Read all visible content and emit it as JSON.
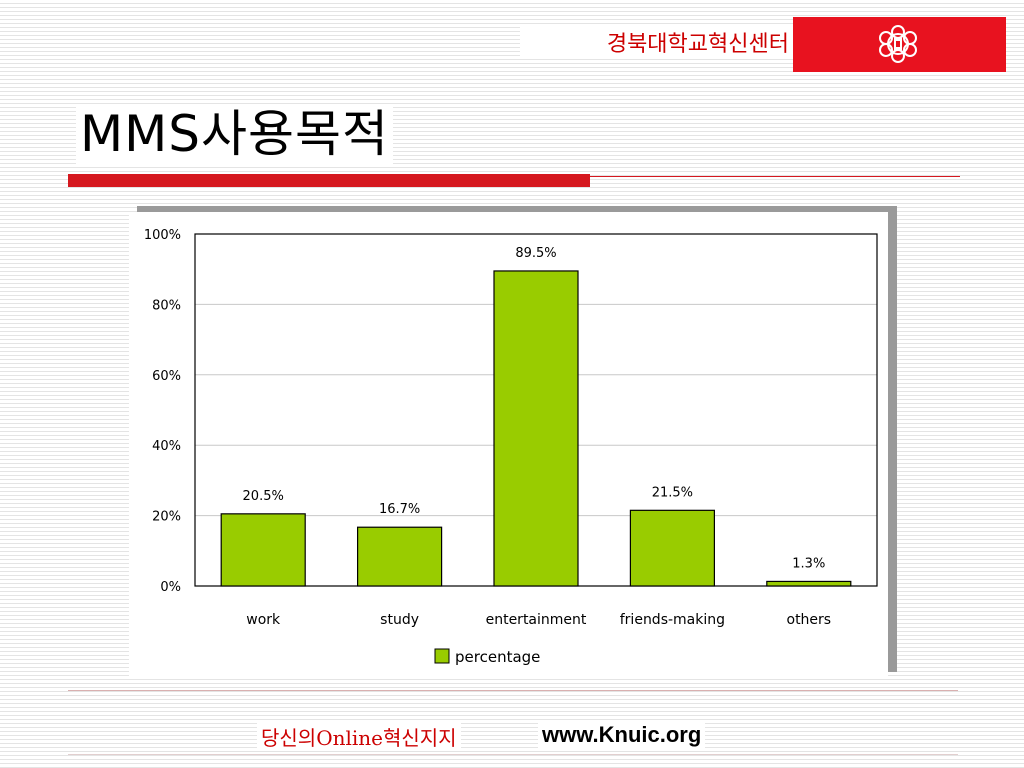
{
  "header": {
    "org_name": "경북대학교혁신센터"
  },
  "title": "MMS사용목적",
  "footer": {
    "left_text": "당신의Online혁신지지",
    "url": "www.Knuic.org"
  },
  "colors": {
    "accent_red": "#d5181f",
    "bar_green": "#99cc00",
    "logo_bg": "#e8121f"
  },
  "icons": {
    "logo": "university-emblem-icon"
  },
  "chart_data": {
    "type": "bar",
    "categories": [
      "work",
      "study",
      "entertainment",
      "friends-making",
      "others"
    ],
    "series": [
      {
        "name": "percentage",
        "values": [
          20.5,
          16.7,
          89.5,
          21.5,
          1.3
        ]
      }
    ],
    "data_labels": [
      "20.5%",
      "16.7%",
      "89.5%",
      "21.5%",
      "1.3%"
    ],
    "y_ticks": [
      "0%",
      "20%",
      "40%",
      "60%",
      "80%",
      "100%"
    ],
    "ylim": [
      0,
      100
    ],
    "grid": true,
    "legend_position": "bottom",
    "title": "",
    "xlabel": "",
    "ylabel": ""
  }
}
